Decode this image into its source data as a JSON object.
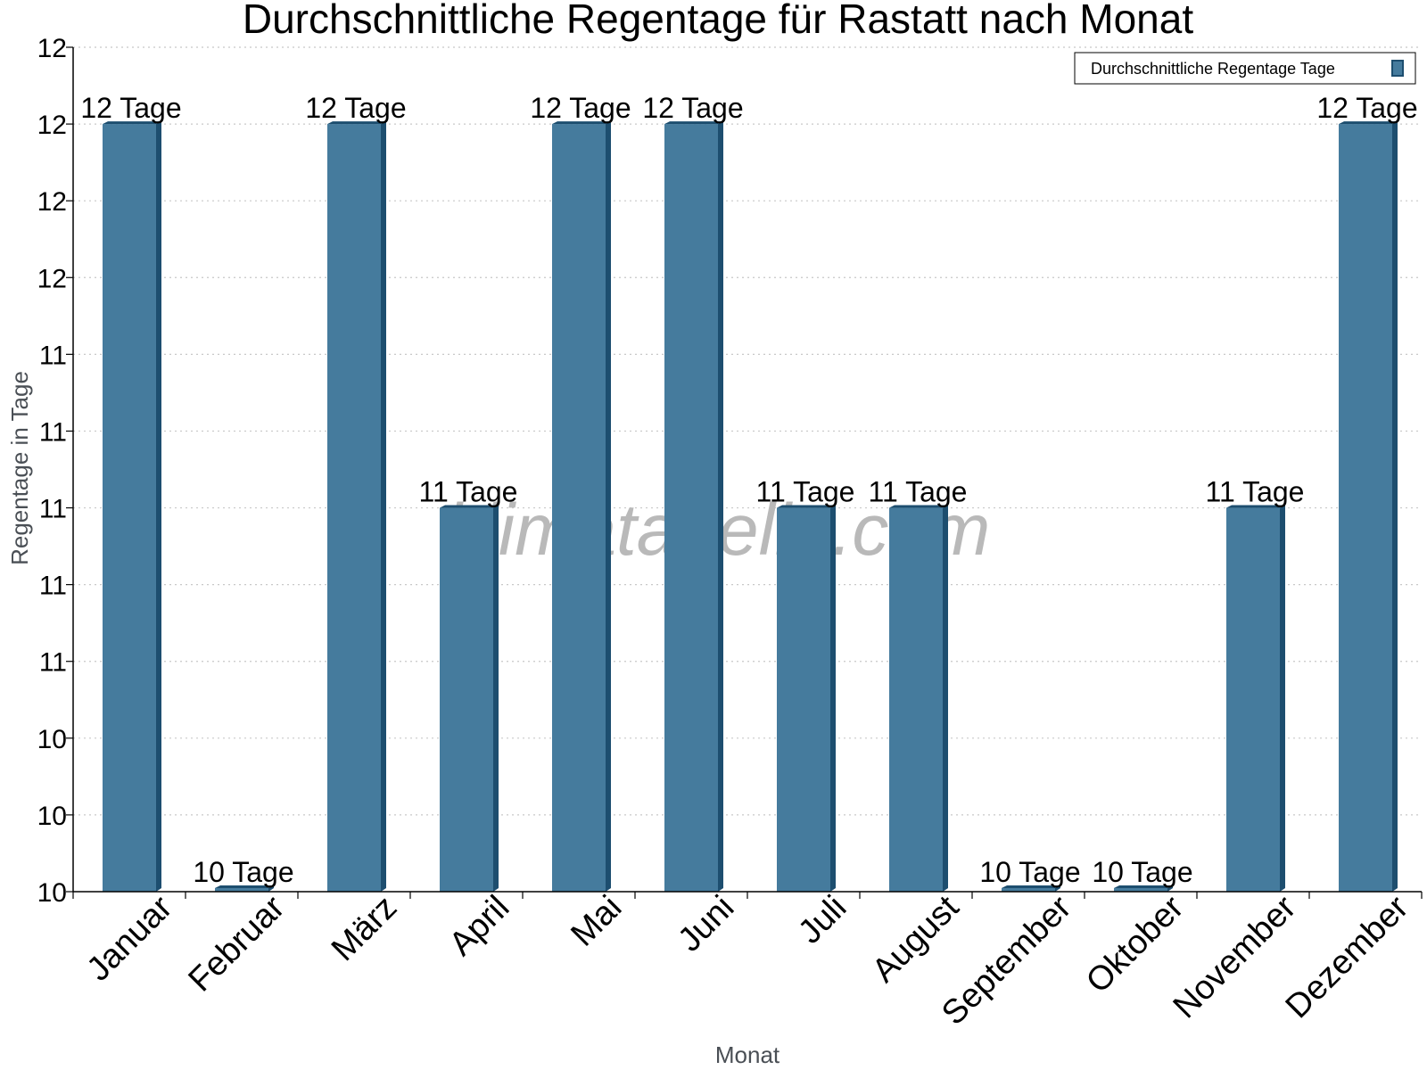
{
  "chart_data": {
    "type": "bar",
    "title": "Durchschnittliche Regentage für Rastatt nach Monat",
    "xlabel": "Monat",
    "ylabel": "Regentage in Tage",
    "categories": [
      "Januar",
      "Februar",
      "März",
      "April",
      "Mai",
      "Juni",
      "Juli",
      "August",
      "September",
      "Oktober",
      "November",
      "Dezember"
    ],
    "series": [
      {
        "name": "Durchschnittliche Regentage Tage",
        "values": [
          12,
          10,
          12,
          11,
          12,
          12,
          11,
          11,
          10,
          10,
          11,
          12
        ],
        "labels": [
          "12 Tage",
          "10 Tage",
          "12 Tage",
          "11 Tage",
          "12 Tage",
          "12 Tage",
          "11 Tage",
          "11 Tage",
          "10 Tage",
          "10 Tage",
          "11 Tage",
          "12 Tage"
        ]
      }
    ],
    "ylim": [
      10,
      12.2
    ],
    "yticks": [
      10,
      10.2,
      10.4,
      10.6,
      10.8,
      11,
      11.2,
      11.4,
      11.6,
      11.8,
      12,
      12.2
    ],
    "ytick_labels": [
      "10",
      "10",
      "10",
      "11",
      "11",
      "11",
      "11",
      "11",
      "12",
      "12",
      "12",
      "12"
    ],
    "grid": true,
    "legend_position": "top-right",
    "bar_color": "#457b9d",
    "bar_edge_color": "#1d4e6f"
  },
  "watermark": "klimatabelle.com"
}
